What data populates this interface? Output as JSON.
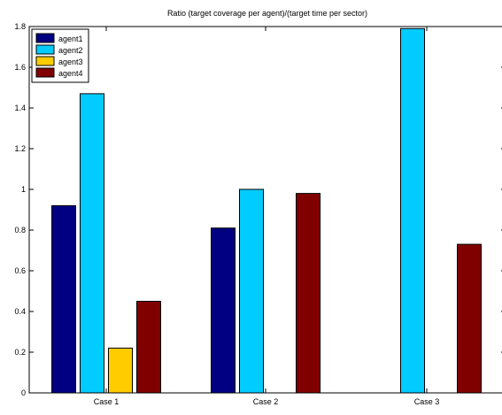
{
  "chart_data": {
    "type": "bar",
    "title": "Ratio (target coverage per agent)/(target time per sector)",
    "xlabel": "",
    "ylabel": "",
    "categories": [
      "Case 1",
      "Case 2",
      "Case 3"
    ],
    "series": [
      {
        "name": "agent1",
        "color": "#000080",
        "values": [
          0.92,
          0.81,
          0
        ]
      },
      {
        "name": "agent2",
        "color": "#00ccff",
        "values": [
          1.47,
          1.0,
          1.79
        ]
      },
      {
        "name": "agent3",
        "color": "#ffcc00",
        "values": [
          0.22,
          0,
          0
        ]
      },
      {
        "name": "agent4",
        "color": "#800000",
        "values": [
          0.45,
          0.98,
          0.73
        ]
      }
    ],
    "ylim": [
      0,
      1.8
    ],
    "yticks": [
      "0",
      "0.2",
      "0.4",
      "0.6",
      "0.8",
      "1",
      "1.2",
      "1.4",
      "1.6",
      "1.8"
    ],
    "ytick_values": [
      0,
      0.2,
      0.4,
      0.6,
      0.8,
      1.0,
      1.2,
      1.4,
      1.6,
      1.8
    ],
    "grid": false,
    "legend_position": "top-left"
  }
}
